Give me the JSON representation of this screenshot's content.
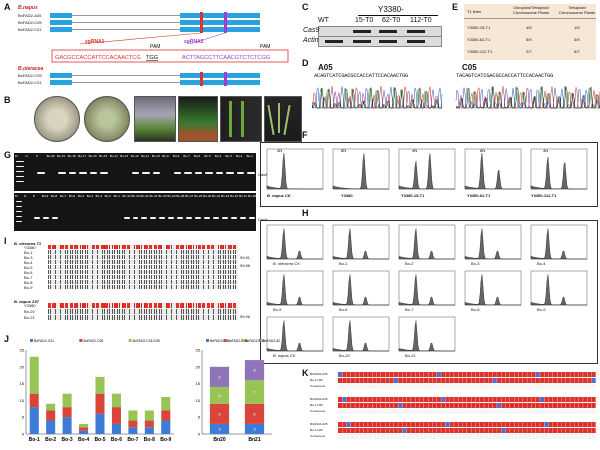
{
  "panels": {
    "A": "A",
    "B": "B",
    "C": "C",
    "D": "D",
    "E": "E",
    "F": "F",
    "G": "G",
    "H": "H",
    "I": "I",
    "J": "J",
    "K": "K"
  },
  "panelA": {
    "species1": "B.napus",
    "genes1": [
      "BnFAD2-A05",
      "BnFAD2-C05",
      "BnFAD2-C01"
    ],
    "sgrna1": "sgRNA1",
    "sgrna2": "sgRNA2",
    "pam": "PAM",
    "seq1": "GACGCCACCATTCCACAACTCG",
    "seq1pam": "TGG",
    "seq2": "ACTTAGCCTTCAACGTCTCTCGG",
    "species2": "B.oleracea",
    "genes2": [
      "BoFAD2-C05",
      "BoFAD2-C01"
    ]
  },
  "panelC": {
    "header": "Y3380-",
    "lanes": [
      "WT",
      "15-T0",
      "62-T0",
      "112-T0"
    ],
    "rows": [
      "Cas9",
      "Actin"
    ]
  },
  "panelD": {
    "a05": "A05",
    "c05": "C05",
    "seqA05": "ACAGTCATCGACGCCACCATTCCACAACTGG",
    "seqC05": "TACAGTCATCGACGCCACCATTCCACAACTGG"
  },
  "panelE": {
    "headers": [
      "T1 lines",
      "Octoploid/Tetraploid Chromosome Plants",
      "Tetraploid Chromosome Plants"
    ],
    "rows": [
      [
        "Y3380-15-T1",
        "4/5",
        "1/5"
      ],
      [
        "Y3380-62-T1",
        "5/9",
        "4/9"
      ],
      [
        "Y3380-112-T1",
        "2/7",
        "5/7"
      ]
    ]
  },
  "panelF": {
    "captions": [
      "B. napus CK",
      "Y3380",
      "Y3380-15-T1",
      "Y3380-62-T1",
      "Y3380-112-T1"
    ],
    "peakLabels": [
      "4N",
      "8N",
      "4N",
      "8N",
      "4N"
    ]
  },
  "panelG": {
    "lanesTop": [
      "M",
      "N",
      "P",
      "Bo-29",
      "Bo-19",
      "Bo-18",
      "Bo-17",
      "Bo-16",
      "Bo-15",
      "Bo-14",
      "Bo-13",
      "Bo-12",
      "Bo-11",
      "Bo-10",
      "Bo-9",
      "Bo-8",
      "Bo-7",
      "Bo-6",
      "Bo-5",
      "Bo-4",
      "Bo-3",
      "Bo-2",
      "Bo-1"
    ],
    "lanesBottom": [
      "M",
      "N",
      "P",
      "Bo-9",
      "Bo-8",
      "Bo-7",
      "Bo-6",
      "Bo-5",
      "Bo-4",
      "Bo-3",
      "Bo-2",
      "Bo-1",
      "Bn-34",
      "Bn-33",
      "Bn-32",
      "Bn-31",
      "Bn-30",
      "Bn-29",
      "Bn-28",
      "Bn-27",
      "Bn-26",
      "Bn-25",
      "Bn-24",
      "Bn-23",
      "Bn-22",
      "Bn-21",
      "Bn-20"
    ],
    "gene": "Cas9"
  },
  "panelH": {
    "captions": [
      "B. oleracea CK",
      "Bo-1",
      "Bo-2",
      "Bo-3",
      "Bo-4",
      "Bo-5",
      "Bo-6",
      "Bo-7",
      "Bo-8",
      "Bo-9",
      "B. napus CK",
      "Bn-20",
      "Bn-21"
    ]
  },
  "panelI": {
    "titleTop": "B. oleracea T1",
    "rowsTop": [
      "Y3380",
      "Bo-1",
      "Bo-3",
      "Bo-4",
      "Bo-5",
      "Bo-6",
      "Bo-7",
      "Bo-8",
      "Bo-9"
    ],
    "titleBottom": "B. napus Z97",
    "rowsBottom": [
      "Y3380",
      "Bn-20",
      "Bn-21"
    ],
    "identityTop": [
      "99.81",
      "99.88"
    ],
    "identityBottom": [
      "99.96"
    ]
  },
  "panelK": {
    "rowLabels": [
      "BnFAD2-A05",
      "Bo-1-C05",
      "Consensus",
      "BnFAD2-A05",
      "Bo-1-C05",
      "Consensus",
      "BnFAD2-A05",
      "Bo-1-C05",
      "Consensus"
    ]
  },
  "colors": {
    "exon": "#29a3e0",
    "target": "#e0302a",
    "purple": "#a33ad2",
    "seqRed": "#e0302a",
    "c01": "#3d7bd6",
    "c05": "#d9453a",
    "c01c05": "#98c455",
    "a05c01c05": "#8f74b9"
  },
  "chart_data": [
    {
      "type": "bar",
      "stacked": true,
      "categories": [
        "Bo-1",
        "Bo-2",
        "Bo-3",
        "Bo-4",
        "Bo-5",
        "Bo-6",
        "Bo-7",
        "Bo-8",
        "Bo-9"
      ],
      "series": [
        {
          "name": "BoFAD2-C01",
          "values": [
            8,
            4,
            5,
            1,
            6,
            3,
            2,
            2,
            4
          ]
        },
        {
          "name": "BoFAD2-C05",
          "values": [
            4,
            3,
            3,
            1,
            6,
            5,
            2,
            2,
            3
          ]
        },
        {
          "name": "BoFAD2-C01/C05",
          "values": [
            11,
            2,
            4,
            1,
            5,
            4,
            3,
            3,
            4
          ]
        }
      ],
      "ylim": [
        0,
        25
      ]
    },
    {
      "type": "bar",
      "stacked": true,
      "categories": [
        "Bn20",
        "Bn21"
      ],
      "series": [
        {
          "name": "BnFAD2-C01",
          "values": [
            3,
            3
          ]
        },
        {
          "name": "BnFAD2-C05",
          "values": [
            6,
            6
          ]
        },
        {
          "name": "BnFAD2-A05",
          "values": [
            5,
            7
          ]
        },
        {
          "name": "BnFAD2-A05/C01/C05",
          "values": [
            6,
            6
          ]
        }
      ],
      "dataLabels": [
        [
          "3",
          "6",
          "5",
          "6"
        ],
        [
          "3",
          "6",
          "7",
          "6"
        ]
      ],
      "ylim": [
        0,
        25
      ]
    }
  ]
}
